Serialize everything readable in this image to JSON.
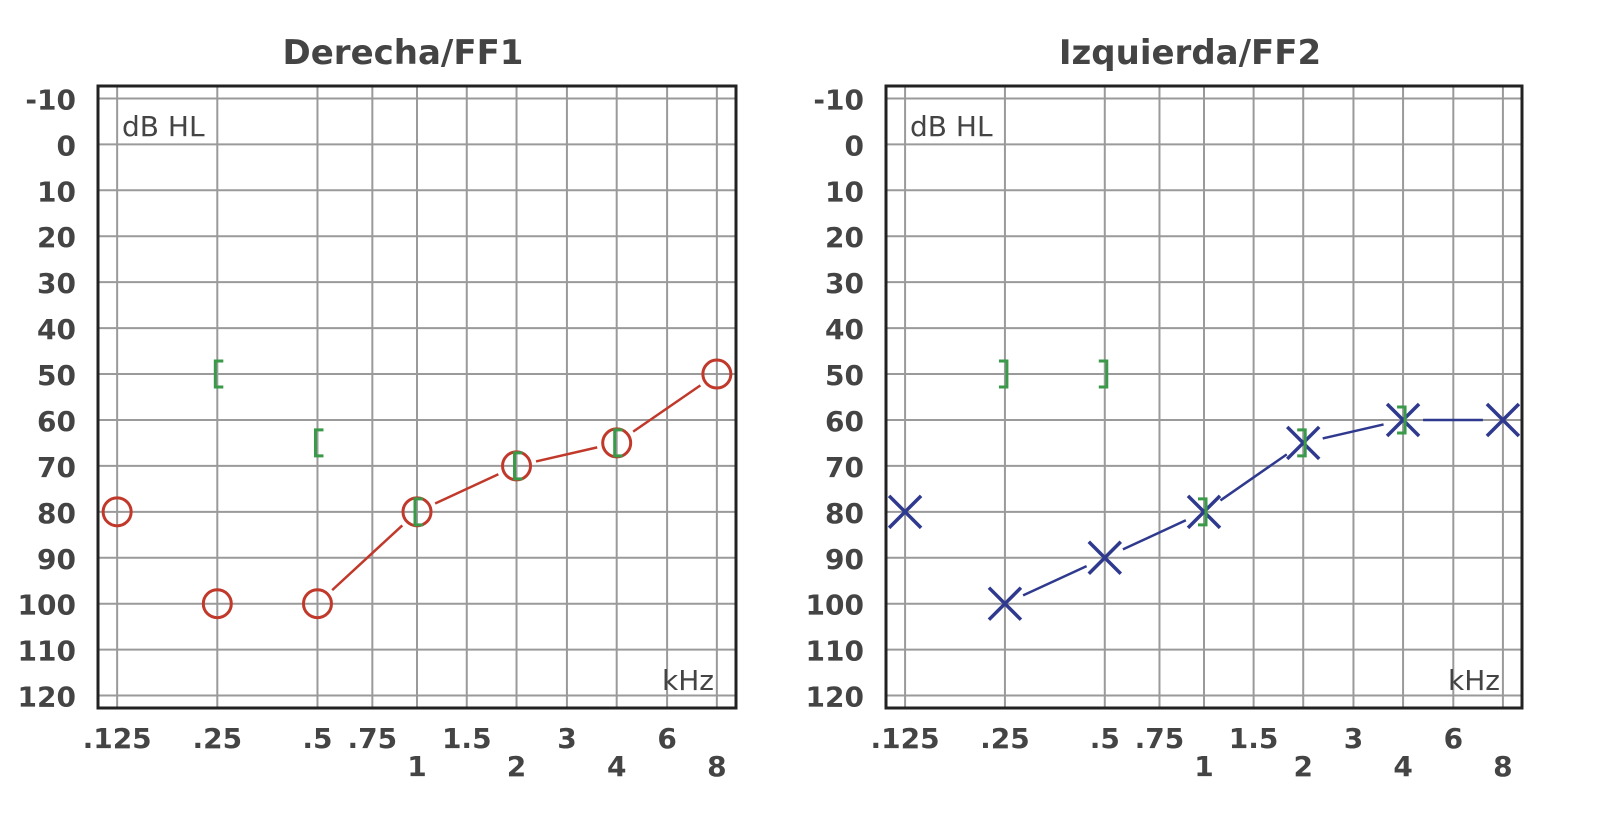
{
  "chart_data": [
    {
      "type": "line",
      "title": "Derecha/FF1",
      "y_unit_label": "dB HL",
      "x_unit_label": "kHz",
      "y_ticks": [
        "-10",
        "0",
        "10",
        "20",
        "30",
        "40",
        "50",
        "60",
        "70",
        "80",
        "90",
        "100",
        "110",
        "120"
      ],
      "y_range": [
        -10,
        120
      ],
      "y_reversed": true,
      "grid": true,
      "x_ticks_upper": [
        ".125",
        ".25",
        ".5",
        ".75",
        "1.5",
        "3",
        "6"
      ],
      "x_ticks_lower": [
        "1",
        "2",
        "4",
        "8"
      ],
      "x_frequencies_khz": [
        0.125,
        0.25,
        0.5,
        1,
        2,
        4,
        8
      ],
      "series": [
        {
          "symbol": "circle",
          "color": "#c0392b",
          "points": [
            {
              "x": 0.125,
              "y": 80
            },
            {
              "x": 0.25,
              "y": 100
            },
            {
              "x": 0.5,
              "y": 100
            },
            {
              "x": 1,
              "y": 80
            },
            {
              "x": 2,
              "y": 70
            },
            {
              "x": 4,
              "y": 65
            },
            {
              "x": 8,
              "y": 50
            }
          ],
          "connected_from_x": 0.5
        },
        {
          "symbol": "bracket-left",
          "color": "#3a9a4a",
          "points": [
            {
              "x": 0.25,
              "y": 50
            },
            {
              "x": 0.5,
              "y": 65
            },
            {
              "x": 1,
              "y": 80
            },
            {
              "x": 2,
              "y": 70
            },
            {
              "x": 4,
              "y": 65
            }
          ]
        }
      ]
    },
    {
      "type": "line",
      "title": "Izquierda/FF2",
      "y_unit_label": "dB HL",
      "x_unit_label": "kHz",
      "y_ticks": [
        "-10",
        "0",
        "10",
        "20",
        "30",
        "40",
        "50",
        "60",
        "70",
        "80",
        "90",
        "100",
        "110",
        "120"
      ],
      "y_range": [
        -10,
        120
      ],
      "y_reversed": true,
      "grid": true,
      "x_ticks_upper": [
        ".125",
        ".25",
        ".5",
        ".75",
        "1.5",
        "3",
        "6"
      ],
      "x_ticks_lower": [
        "1",
        "2",
        "4",
        "8"
      ],
      "x_frequencies_khz": [
        0.125,
        0.25,
        0.5,
        1,
        2,
        4,
        8
      ],
      "series": [
        {
          "symbol": "x",
          "color": "#2f3a8f",
          "points": [
            {
              "x": 0.125,
              "y": 80
            },
            {
              "x": 0.25,
              "y": 100
            },
            {
              "x": 0.5,
              "y": 90
            },
            {
              "x": 1,
              "y": 80
            },
            {
              "x": 2,
              "y": 65
            },
            {
              "x": 4,
              "y": 60
            },
            {
              "x": 8,
              "y": 60
            }
          ],
          "connected_from_x": 0.25
        },
        {
          "symbol": "bracket-right",
          "color": "#3a9a4a",
          "points": [
            {
              "x": 0.25,
              "y": 50
            },
            {
              "x": 0.5,
              "y": 50
            },
            {
              "x": 1,
              "y": 80
            },
            {
              "x": 2,
              "y": 65
            },
            {
              "x": 4,
              "y": 60
            }
          ]
        }
      ]
    }
  ]
}
